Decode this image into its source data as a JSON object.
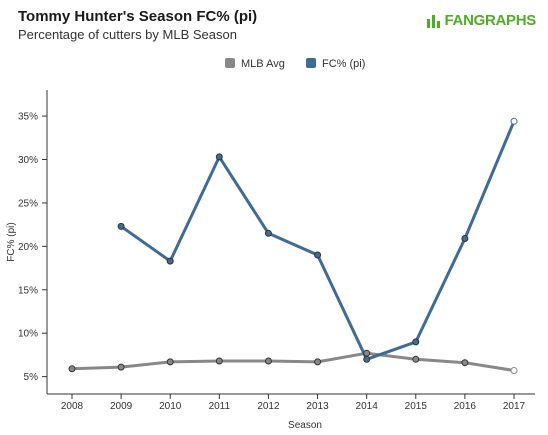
{
  "header": {
    "title": "Tommy Hunter's Season FC% (pi)",
    "subtitle": "Percentage of cutters by MLB Season",
    "brand": "FANGRAPHS",
    "brand_icon": "fangraphs-logo-icon",
    "brand_color": "#50ae26"
  },
  "chart_data": {
    "type": "line",
    "x": [
      2008,
      2009,
      2010,
      2011,
      2012,
      2013,
      2014,
      2015,
      2016,
      2017
    ],
    "series": [
      {
        "name": "MLB Avg",
        "color": "#888888",
        "values": [
          5.9,
          6.1,
          6.7,
          6.8,
          6.8,
          6.7,
          7.7,
          7.0,
          6.6,
          5.7
        ]
      },
      {
        "name": "FC% (pi)",
        "color": "#3f6b94",
        "values": [
          null,
          22.3,
          18.3,
          30.3,
          21.5,
          19.0,
          7.0,
          9.0,
          20.9,
          34.4
        ]
      }
    ],
    "xlabel": "Season",
    "ylabel": "FC% (pi)",
    "ylim": [
      3,
      38
    ],
    "yticks": [
      5,
      10,
      15,
      20,
      25,
      30,
      35
    ],
    "ytick_labels": [
      "5%",
      "10%",
      "15%",
      "20%",
      "25%",
      "30%",
      "35%"
    ],
    "xtick_labels": [
      "2008",
      "2009",
      "2010",
      "2011",
      "2012",
      "2013",
      "2014",
      "2015",
      "2016",
      "2017"
    ],
    "legend_position": "top-center",
    "grid": false
  }
}
